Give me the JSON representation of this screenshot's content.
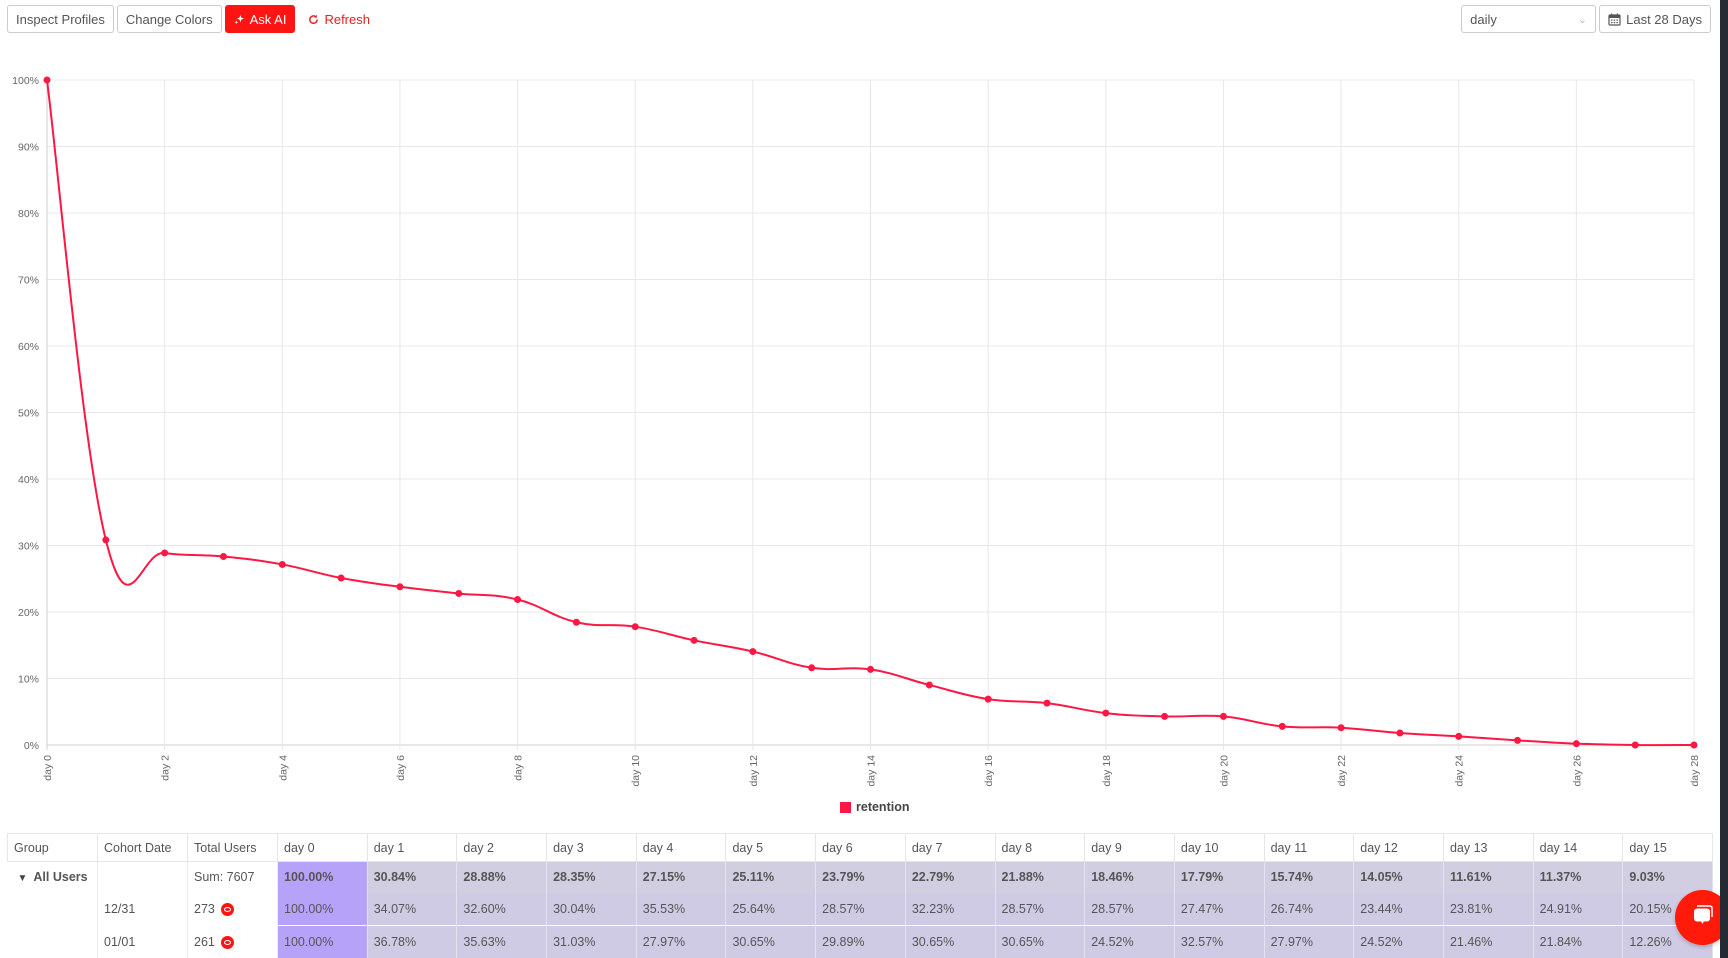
{
  "toolbar": {
    "inspect_profiles": "Inspect Profiles",
    "change_colors": "Change Colors",
    "ask_ai": "Ask AI",
    "refresh": "Refresh",
    "interval_select": "daily",
    "date_range": "Last 28 Days"
  },
  "colors": {
    "accent": "#ff1414",
    "series": "#ff1744",
    "day0_cell": "#b7a2f9",
    "retention_cell": "#d0cbe4"
  },
  "chart_data": {
    "type": "line",
    "title": "",
    "xlabel": "",
    "ylabel": "",
    "ylim": [
      0,
      100
    ],
    "y_ticks": [
      "0%",
      "10%",
      "20%",
      "30%",
      "40%",
      "50%",
      "60%",
      "70%",
      "80%",
      "90%",
      "100%"
    ],
    "x_tick_labels": [
      "day 0",
      "day 2",
      "day 4",
      "day 6",
      "day 8",
      "day 10",
      "day 12",
      "day 14",
      "day 16",
      "day 18",
      "day 20",
      "day 22",
      "day 24",
      "day 26",
      "day 28"
    ],
    "x": [
      "day 0",
      "day 1",
      "day 2",
      "day 3",
      "day 4",
      "day 5",
      "day 6",
      "day 7",
      "day 8",
      "day 9",
      "day 10",
      "day 11",
      "day 12",
      "day 13",
      "day 14",
      "day 15",
      "day 16",
      "day 17",
      "day 18",
      "day 19",
      "day 20",
      "day 21",
      "day 22",
      "day 23",
      "day 24",
      "day 25",
      "day 26",
      "day 27",
      "day 28"
    ],
    "series": [
      {
        "name": "retention",
        "values": [
          100.0,
          30.84,
          28.88,
          28.35,
          27.15,
          25.11,
          23.79,
          22.79,
          21.88,
          18.46,
          17.79,
          15.74,
          14.05,
          11.61,
          11.37,
          9.03,
          6.9,
          6.3,
          4.8,
          4.3,
          4.3,
          2.8,
          2.6,
          1.8,
          1.3,
          0.7,
          0.2,
          0.0,
          0.0
        ]
      }
    ],
    "legend": [
      "retention"
    ],
    "legend_position": "bottom",
    "grid": true
  },
  "table": {
    "headers": [
      "Group",
      "Cohort Date",
      "Total Users",
      "day 0",
      "day 1",
      "day 2",
      "day 3",
      "day 4",
      "day 5",
      "day 6",
      "day 7",
      "day 8",
      "day 9",
      "day 10",
      "day 11",
      "day 12",
      "day 13",
      "day 14",
      "day 15"
    ],
    "summary": {
      "group": "All Users",
      "cohort_date": "",
      "total_users": "Sum: 7607",
      "values": [
        "100.00%",
        "30.84%",
        "28.88%",
        "28.35%",
        "27.15%",
        "25.11%",
        "23.79%",
        "22.79%",
        "21.88%",
        "18.46%",
        "17.79%",
        "15.74%",
        "14.05%",
        "11.61%",
        "11.37%",
        "9.03%"
      ]
    },
    "rows": [
      {
        "cohort_date": "12/31",
        "total_users": "273",
        "values": [
          "100.00%",
          "34.07%",
          "32.60%",
          "30.04%",
          "35.53%",
          "25.64%",
          "28.57%",
          "32.23%",
          "28.57%",
          "28.57%",
          "27.47%",
          "26.74%",
          "23.44%",
          "23.81%",
          "24.91%",
          "20.15%"
        ]
      },
      {
        "cohort_date": "01/01",
        "total_users": "261",
        "values": [
          "100.00%",
          "36.78%",
          "35.63%",
          "31.03%",
          "27.97%",
          "30.65%",
          "29.89%",
          "30.65%",
          "30.65%",
          "24.52%",
          "32.57%",
          "27.97%",
          "24.52%",
          "21.46%",
          "21.84%",
          "12.26%"
        ]
      }
    ]
  }
}
